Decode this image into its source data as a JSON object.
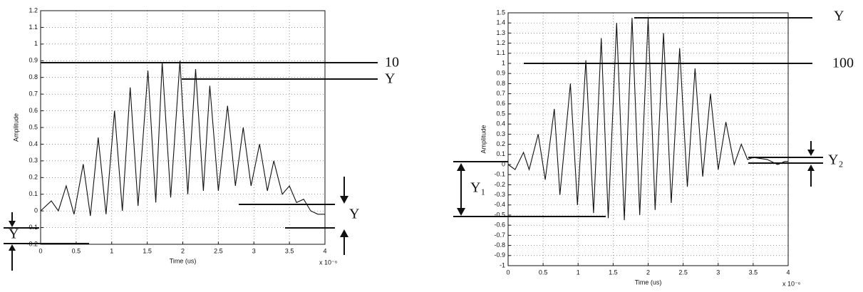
{
  "chart_data": [
    {
      "type": "line",
      "x_label": "Time (us)",
      "y_label": "Amplitude",
      "x_multiplier": "x 10⁻⁶",
      "xlim": [
        0,
        4
      ],
      "xticks": [
        0,
        0.5,
        1,
        1.5,
        2,
        2.5,
        3,
        3.5,
        4
      ],
      "ylim": [
        -0.2,
        1.2
      ],
      "yticks": [
        -0.2,
        -0.1,
        0,
        0.1,
        0.2,
        0.3,
        0.4,
        0.5,
        0.6,
        0.7,
        0.8,
        0.9,
        1,
        1.1,
        1.2
      ],
      "grid": true,
      "x": [
        0,
        0.15,
        0.25,
        0.36,
        0.47,
        0.6,
        0.7,
        0.81,
        0.92,
        1.04,
        1.15,
        1.26,
        1.37,
        1.51,
        1.62,
        1.71,
        1.83,
        1.96,
        2.07,
        2.18,
        2.29,
        2.38,
        2.5,
        2.63,
        2.74,
        2.85,
        2.96,
        3.08,
        3.19,
        3.28,
        3.4,
        3.5,
        3.6,
        3.7,
        3.8,
        3.9,
        4.0
      ],
      "series": [
        {
          "color": "#111111",
          "values": [
            0,
            0.06,
            0.0,
            0.15,
            -0.02,
            0.28,
            -0.03,
            0.44,
            -0.02,
            0.6,
            0.0,
            0.74,
            0.03,
            0.84,
            0.05,
            0.89,
            0.08,
            0.9,
            0.1,
            0.85,
            0.12,
            0.75,
            0.12,
            0.63,
            0.15,
            0.5,
            0.15,
            0.4,
            0.12,
            0.3,
            0.1,
            0.15,
            0.05,
            0.07,
            0.0,
            -0.02,
            -0.02
          ]
        }
      ],
      "annotations": [
        "10",
        "Y",
        "Y",
        "Y"
      ]
    },
    {
      "type": "line",
      "x_label": "Time (us)",
      "y_label": "Amplitude",
      "x_multiplier": "x 10⁻⁶",
      "xlim": [
        0,
        4
      ],
      "xticks": [
        0,
        0.5,
        1,
        1.5,
        2,
        2.5,
        3,
        3.5,
        4
      ],
      "ylim": [
        -1,
        1.5
      ],
      "yticks": [
        -1,
        -0.9,
        -0.8,
        -0.7,
        -0.6,
        -0.5,
        -0.4,
        -0.3,
        -0.2,
        -0.1,
        0,
        0.1,
        0.2,
        0.3,
        0.4,
        0.5,
        0.6,
        0.7,
        0.8,
        0.9,
        1,
        1.1,
        1.2,
        1.3,
        1.4,
        1.5
      ],
      "grid": true,
      "x": [
        0,
        0.1,
        0.22,
        0.3,
        0.43,
        0.53,
        0.66,
        0.74,
        0.89,
        0.99,
        1.11,
        1.22,
        1.33,
        1.43,
        1.55,
        1.66,
        1.77,
        1.88,
        2.0,
        2.1,
        2.22,
        2.33,
        2.45,
        2.56,
        2.67,
        2.78,
        2.89,
        3.0,
        3.11,
        3.23,
        3.33,
        3.42,
        3.5,
        3.7,
        3.85,
        3.95,
        4.0
      ],
      "series": [
        {
          "color": "#111111",
          "values": [
            0.0,
            -0.05,
            0.12,
            -0.05,
            0.3,
            -0.15,
            0.55,
            -0.3,
            0.8,
            -0.4,
            1.03,
            -0.48,
            1.25,
            -0.53,
            1.4,
            -0.55,
            1.45,
            -0.5,
            1.45,
            -0.45,
            1.3,
            -0.38,
            1.15,
            -0.22,
            0.95,
            -0.12,
            0.7,
            -0.05,
            0.42,
            0.0,
            0.2,
            0.05,
            0.07,
            0.05,
            0.0,
            0.03,
            0.03
          ]
        }
      ],
      "annotations": [
        "Y",
        "100",
        "Y₁",
        "Y₂"
      ]
    }
  ]
}
